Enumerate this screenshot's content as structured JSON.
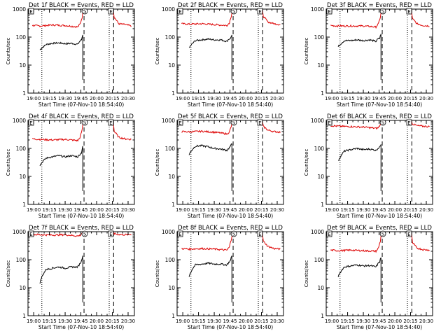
{
  "figure": {
    "start_time_label": "Start Time (07-Nov-10 18:54:40)",
    "ylabel": "Counts/sec",
    "x_ticks": [
      "19:00",
      "19:15",
      "19:30",
      "19:45",
      "20:00",
      "20:15",
      "20:30"
    ],
    "y_ticks": [
      "1",
      "10",
      "100",
      "1000"
    ],
    "marker_labels": [
      "E",
      "S",
      "E"
    ],
    "colors": {
      "events": "#000000",
      "lld": "#dd0000",
      "axes": "#000000"
    }
  },
  "chart_data": [
    {
      "type": "line",
      "title": "Det 1f BLACK = Events, RED = LLD",
      "xlabel": "Start Time (07-Nov-10 18:54:40)",
      "ylabel": "Counts/sec",
      "ylim": [
        1,
        1000
      ],
      "yscale": "log",
      "series": [
        {
          "name": "Events",
          "color": "#000000",
          "x": [
            19.1,
            19.2,
            19.3,
            19.4,
            19.5,
            19.6,
            19.7,
            19.73,
            19.76,
            19.78
          ],
          "y": [
            35,
            55,
            60,
            62,
            58,
            60,
            55,
            70,
            80,
            120
          ]
        },
        {
          "name": "LLD",
          "color": "#dd0000",
          "x": [
            18.98,
            19.1,
            19.3,
            19.5,
            19.7,
            19.74,
            19.77,
            19.79,
            19.8,
            20.26,
            20.28,
            20.35,
            20.45,
            20.55
          ],
          "y": [
            260,
            250,
            270,
            260,
            230,
            300,
            500,
            900,
            1000,
            1000,
            500,
            300,
            280,
            250
          ]
        }
      ],
      "vlines": [
        {
          "x": 19.13,
          "style": "dotted"
        },
        {
          "x": 19.8,
          "style": "dashed"
        },
        {
          "x": 20.2,
          "style": "dotted"
        },
        {
          "x": 20.27,
          "style": "dashed"
        }
      ]
    },
    {
      "type": "line",
      "title": "Det 2f BLACK = Events, RED = LLD",
      "xlabel": "Start Time (07-Nov-10 18:54:40)",
      "ylabel": "Counts/sec",
      "ylim": [
        1,
        1000
      ],
      "yscale": "log",
      "series": [
        {
          "name": "Events",
          "color": "#000000",
          "x": [
            19.1,
            19.2,
            19.3,
            19.4,
            19.5,
            19.6,
            19.7,
            19.73,
            19.76,
            19.78
          ],
          "y": [
            40,
            75,
            80,
            85,
            80,
            80,
            70,
            85,
            90,
            120
          ]
        },
        {
          "name": "LLD",
          "color": "#dd0000",
          "x": [
            18.98,
            19.1,
            19.3,
            19.5,
            19.7,
            19.74,
            19.77,
            19.79,
            19.8,
            20.26,
            20.28,
            20.35,
            20.45,
            20.55
          ],
          "y": [
            300,
            290,
            300,
            280,
            260,
            320,
            550,
            900,
            1000,
            1000,
            550,
            350,
            300,
            280
          ]
        }
      ],
      "vlines": [
        {
          "x": 19.13,
          "style": "dotted"
        },
        {
          "x": 19.8,
          "style": "dashed"
        },
        {
          "x": 20.2,
          "style": "dotted"
        },
        {
          "x": 20.27,
          "style": "dashed"
        }
      ]
    },
    {
      "type": "line",
      "title": "Det 3f BLACK = Events, RED = LLD",
      "xlabel": "Start Time (07-Nov-10 18:54:40)",
      "ylabel": "Counts/sec",
      "ylim": [
        1,
        1000
      ],
      "yscale": "log",
      "series": [
        {
          "name": "Events",
          "color": "#000000",
          "x": [
            19.1,
            19.2,
            19.3,
            19.4,
            19.5,
            19.6,
            19.7,
            19.73,
            19.76,
            19.78
          ],
          "y": [
            45,
            75,
            75,
            80,
            75,
            80,
            70,
            85,
            90,
            130
          ]
        },
        {
          "name": "LLD",
          "color": "#dd0000",
          "x": [
            18.98,
            19.1,
            19.3,
            19.5,
            19.7,
            19.74,
            19.77,
            19.79,
            19.8,
            20.26,
            20.28,
            20.35,
            20.45,
            20.55
          ],
          "y": [
            260,
            250,
            250,
            250,
            230,
            300,
            500,
            900,
            1000,
            1000,
            450,
            300,
            260,
            250
          ]
        }
      ],
      "vlines": [
        {
          "x": 19.13,
          "style": "dotted"
        },
        {
          "x": 19.8,
          "style": "dashed"
        },
        {
          "x": 20.2,
          "style": "dotted"
        },
        {
          "x": 20.27,
          "style": "dashed"
        }
      ]
    },
    {
      "type": "line",
      "title": "Det 4f BLACK = Events, RED = LLD",
      "xlabel": "Start Time (07-Nov-10 18:54:40)",
      "ylabel": "Counts/sec",
      "ylim": [
        1,
        1000
      ],
      "yscale": "log",
      "series": [
        {
          "name": "Events",
          "color": "#000000",
          "x": [
            19.1,
            19.2,
            19.3,
            19.4,
            19.5,
            19.6,
            19.7,
            19.73,
            19.76,
            19.78
          ],
          "y": [
            25,
            45,
            50,
            55,
            50,
            55,
            50,
            60,
            70,
            120
          ]
        },
        {
          "name": "LLD",
          "color": "#dd0000",
          "x": [
            18.98,
            19.1,
            19.3,
            19.5,
            19.7,
            19.74,
            19.77,
            19.79,
            19.8,
            20.26,
            20.28,
            20.35,
            20.45,
            20.55
          ],
          "y": [
            220,
            210,
            200,
            210,
            190,
            250,
            450,
            900,
            1000,
            1000,
            400,
            250,
            220,
            210
          ]
        }
      ],
      "vlines": [
        {
          "x": 19.13,
          "style": "dotted"
        },
        {
          "x": 19.8,
          "style": "dashed"
        },
        {
          "x": 20.2,
          "style": "dotted"
        },
        {
          "x": 20.27,
          "style": "dashed"
        }
      ]
    },
    {
      "type": "line",
      "title": "Det 5f BLACK = Events, RED = LLD",
      "xlabel": "Start Time (07-Nov-10 18:54:40)",
      "ylabel": "Counts/sec",
      "ylim": [
        1,
        1000
      ],
      "yscale": "log",
      "series": [
        {
          "name": "Events",
          "color": "#000000",
          "x": [
            19.1,
            19.2,
            19.3,
            19.4,
            19.5,
            19.6,
            19.7,
            19.73,
            19.76,
            19.78
          ],
          "y": [
            60,
            120,
            125,
            115,
            100,
            95,
            85,
            100,
            120,
            150
          ]
        },
        {
          "name": "LLD",
          "color": "#dd0000",
          "x": [
            18.98,
            19.1,
            19.3,
            19.5,
            19.7,
            19.74,
            19.77,
            19.79,
            19.8,
            20.26,
            20.28,
            20.35,
            20.45,
            20.55
          ],
          "y": [
            400,
            390,
            410,
            380,
            330,
            380,
            600,
            900,
            1000,
            1000,
            600,
            450,
            400,
            380
          ]
        }
      ],
      "vlines": [
        {
          "x": 19.13,
          "style": "dotted"
        },
        {
          "x": 19.8,
          "style": "dashed"
        },
        {
          "x": 20.2,
          "style": "dotted"
        },
        {
          "x": 20.27,
          "style": "dashed"
        }
      ]
    },
    {
      "type": "line",
      "title": "Det 6f BLACK = Events, RED = LLD",
      "xlabel": "Start Time (07-Nov-10 18:54:40)",
      "ylabel": "Counts/sec",
      "ylim": [
        1,
        1000
      ],
      "yscale": "log",
      "series": [
        {
          "name": "Events",
          "color": "#000000",
          "x": [
            19.1,
            19.2,
            19.3,
            19.4,
            19.5,
            19.6,
            19.7,
            19.73,
            19.76,
            19.78
          ],
          "y": [
            35,
            80,
            90,
            100,
            90,
            95,
            85,
            100,
            110,
            140
          ]
        },
        {
          "name": "LLD",
          "color": "#dd0000",
          "x": [
            18.98,
            19.1,
            19.3,
            19.5,
            19.7,
            19.74,
            19.77,
            19.79,
            19.8,
            20.26,
            20.28,
            20.35,
            20.45,
            20.55
          ],
          "y": [
            650,
            620,
            600,
            580,
            520,
            550,
            700,
            900,
            1000,
            1000,
            750,
            650,
            620,
            600
          ]
        }
      ],
      "vlines": [
        {
          "x": 19.13,
          "style": "dotted"
        },
        {
          "x": 19.8,
          "style": "dashed"
        },
        {
          "x": 20.2,
          "style": "dotted"
        },
        {
          "x": 20.27,
          "style": "dashed"
        }
      ]
    },
    {
      "type": "line",
      "title": "Det 7f BLACK = Events, RED = LLD",
      "xlabel": "Start Time (07-Nov-10 18:54:40)",
      "ylabel": "Counts/sec",
      "ylim": [
        1,
        1000
      ],
      "yscale": "log",
      "series": [
        {
          "name": "Events",
          "color": "#000000",
          "x": [
            19.1,
            19.2,
            19.3,
            19.4,
            19.5,
            19.6,
            19.7,
            19.73,
            19.76,
            19.78
          ],
          "y": [
            15,
            45,
            50,
            55,
            50,
            55,
            55,
            70,
            90,
            140
          ]
        },
        {
          "name": "LLD",
          "color": "#dd0000",
          "x": [
            18.98,
            19.1,
            19.3,
            19.5,
            19.7,
            19.74,
            19.77,
            19.79,
            19.8,
            20.26,
            20.28,
            20.35,
            20.45,
            20.55
          ],
          "y": [
            800,
            780,
            760,
            780,
            700,
            750,
            900,
            1000,
            1000,
            1000,
            850,
            800,
            780,
            800
          ]
        }
      ],
      "vlines": [
        {
          "x": 19.13,
          "style": "dotted"
        },
        {
          "x": 19.8,
          "style": "dashed"
        },
        {
          "x": 20.2,
          "style": "dotted"
        },
        {
          "x": 20.27,
          "style": "dashed"
        }
      ]
    },
    {
      "type": "line",
      "title": "Det 8f BLACK = Events, RED = LLD",
      "xlabel": "Start Time (07-Nov-10 18:54:40)",
      "ylabel": "Counts/sec",
      "ylim": [
        1,
        1000
      ],
      "yscale": "log",
      "series": [
        {
          "name": "Events",
          "color": "#000000",
          "x": [
            19.1,
            19.2,
            19.3,
            19.4,
            19.5,
            19.6,
            19.7,
            19.73,
            19.76,
            19.78
          ],
          "y": [
            25,
            65,
            70,
            75,
            70,
            70,
            65,
            80,
            95,
            140
          ]
        },
        {
          "name": "LLD",
          "color": "#dd0000",
          "x": [
            18.98,
            19.1,
            19.3,
            19.5,
            19.7,
            19.74,
            19.77,
            19.79,
            19.8,
            20.26,
            20.28,
            20.35,
            20.45,
            20.55
          ],
          "y": [
            250,
            240,
            250,
            240,
            220,
            280,
            500,
            900,
            1000,
            1000,
            450,
            300,
            250,
            240
          ]
        }
      ],
      "vlines": [
        {
          "x": 19.13,
          "style": "dotted"
        },
        {
          "x": 19.8,
          "style": "dashed"
        },
        {
          "x": 20.2,
          "style": "dotted"
        },
        {
          "x": 20.27,
          "style": "dashed"
        }
      ]
    },
    {
      "type": "line",
      "title": "Det 9f BLACK = Events, RED = LLD",
      "xlabel": "Start Time (07-Nov-10 18:54:40)",
      "ylabel": "Counts/sec",
      "ylim": [
        1,
        1000
      ],
      "yscale": "log",
      "series": [
        {
          "name": "Events",
          "color": "#000000",
          "x": [
            19.1,
            19.2,
            19.3,
            19.4,
            19.5,
            19.6,
            19.7,
            19.73,
            19.76,
            19.78
          ],
          "y": [
            25,
            55,
            60,
            65,
            60,
            62,
            55,
            70,
            85,
            120
          ]
        },
        {
          "name": "LLD",
          "color": "#dd0000",
          "x": [
            18.98,
            19.1,
            19.3,
            19.5,
            19.7,
            19.74,
            19.77,
            19.79,
            19.8,
            20.26,
            20.28,
            20.35,
            20.45,
            20.55
          ],
          "y": [
            220,
            210,
            220,
            210,
            200,
            260,
            450,
            900,
            1000,
            1000,
            400,
            260,
            230,
            220
          ]
        }
      ],
      "vlines": [
        {
          "x": 19.13,
          "style": "dotted"
        },
        {
          "x": 19.8,
          "style": "dashed"
        },
        {
          "x": 20.2,
          "style": "dotted"
        },
        {
          "x": 20.27,
          "style": "dashed"
        }
      ]
    }
  ]
}
